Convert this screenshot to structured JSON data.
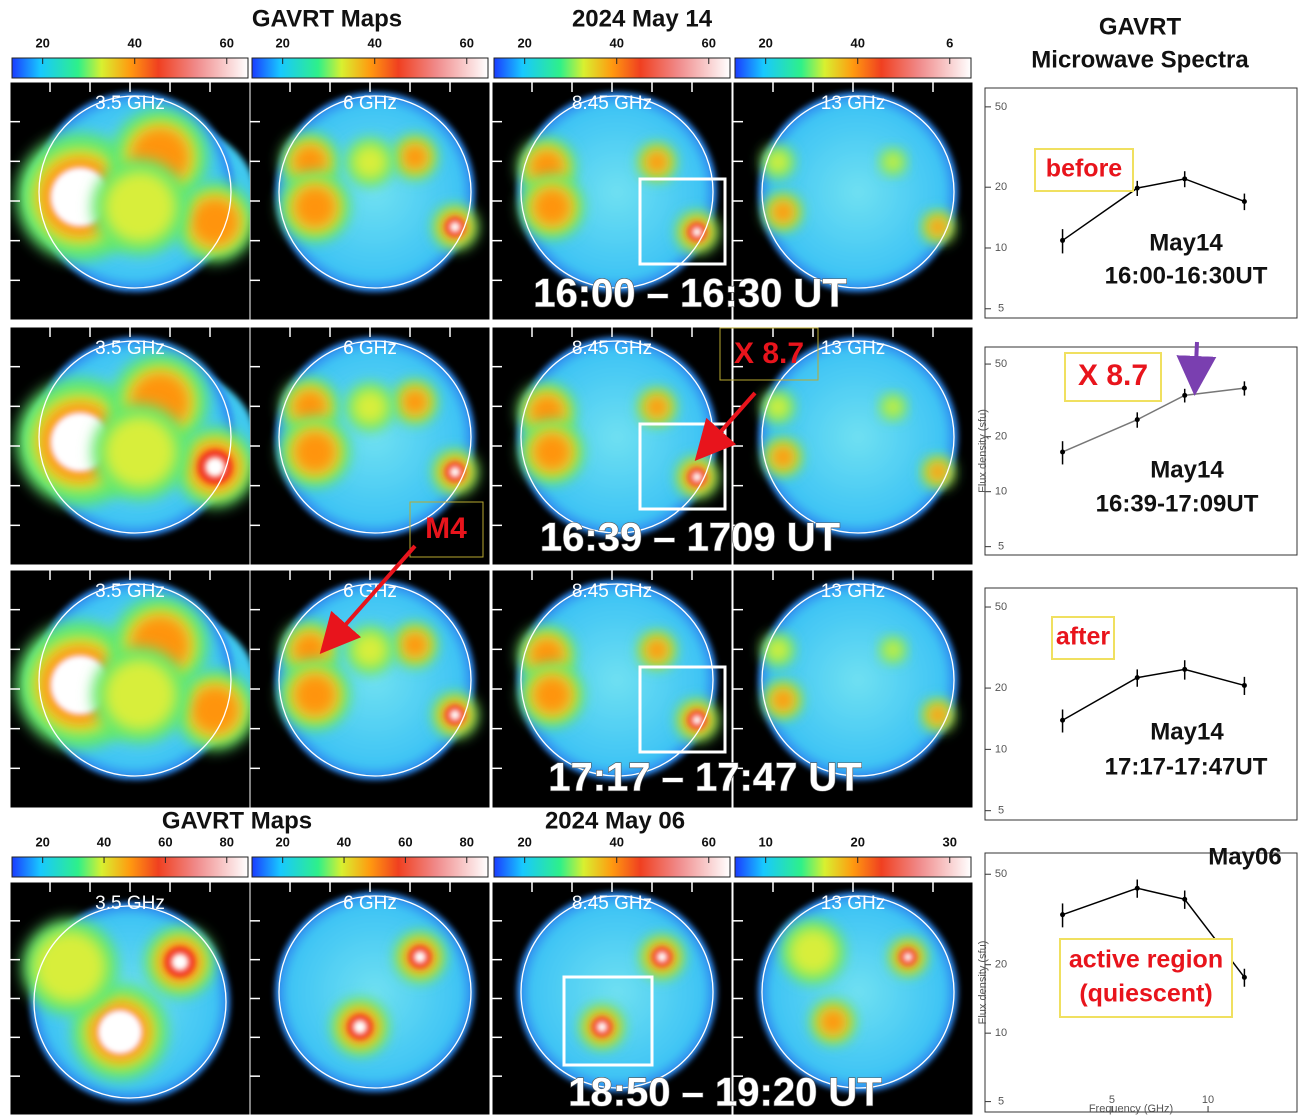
{
  "maps": {
    "sections": [
      {
        "title": "GAVRT Maps",
        "date": "2024 May 14",
        "colorbars": [
          [
            "20",
            "40",
            "60"
          ],
          [
            "20",
            "40",
            "60"
          ],
          [
            "20",
            "40",
            "60"
          ],
          [
            "20",
            "40",
            "6"
          ]
        ],
        "rows": [
          {
            "freqs": [
              "3.5 GHz",
              "6 GHz",
              "8.45 GHz",
              "13 GHz"
            ],
            "time": "16:00 – 16:30 UT"
          },
          {
            "freqs": [
              "3.5 GHz",
              "6 GHz",
              "8.45 GHz",
              "13 GHz"
            ],
            "time": "16:39 – 1709 UT"
          },
          {
            "freqs": [
              "3.5 GHz",
              "6 GHz",
              "8.45 GHz",
              "13 GHz"
            ],
            "time": "17:17 – 17:47 UT"
          }
        ]
      },
      {
        "title": "GAVRT Maps",
        "date": "2024 May 06",
        "colorbars": [
          [
            "20",
            "40",
            "60",
            "80"
          ],
          [
            "20",
            "40",
            "60",
            "80"
          ],
          [
            "20",
            "40",
            "60"
          ],
          [
            "10",
            "20",
            "30"
          ]
        ],
        "rows": [
          {
            "freqs": [
              "3.5 GHz",
              "6 GHz",
              "8.45 GHz",
              "13 GHz"
            ],
            "time": "18:50 – 19:20 UT"
          }
        ]
      }
    ],
    "annotations": [
      "X 8.7",
      "M4"
    ]
  },
  "spectra_title": [
    "GAVRT",
    "Microwave Spectra"
  ],
  "chart_data": [
    {
      "type": "line",
      "x": [
        3.5,
        6,
        8.45,
        13
      ],
      "log_x": true,
      "log_y": true,
      "xlim": [
        2,
        19
      ],
      "ylim": [
        4.5,
        62
      ],
      "yticks": [
        5,
        10,
        20,
        50
      ],
      "series": [
        {
          "color": "#000000",
          "values": [
            10.9,
            19.8,
            22,
            17
          ],
          "errors": [
            1.5,
            1.7,
            2,
            1.6
          ]
        }
      ],
      "label": [
        "before"
      ],
      "date": "May14",
      "time": "16:00-16:30UT"
    },
    {
      "type": "line",
      "x": [
        3.5,
        6,
        8.45,
        13
      ],
      "log_x": true,
      "log_y": true,
      "xlim": [
        2,
        19
      ],
      "ylim": [
        4.5,
        62
      ],
      "yticks": [
        5,
        10,
        20,
        50
      ],
      "series": [
        {
          "color": "#777777",
          "values": [
            16.5,
            24.8,
            33.7,
            36.9
          ],
          "errors": [
            2.4,
            2.4,
            2.9,
            3.3
          ]
        }
      ],
      "label": [
        "X 8.7"
      ],
      "date": "May14",
      "time": "16:39-17:09UT",
      "ylabel": "Flux density (sfu)"
    },
    {
      "type": "line",
      "x": [
        3.5,
        6,
        8.45,
        13
      ],
      "log_x": true,
      "log_y": true,
      "xlim": [
        2,
        19
      ],
      "ylim": [
        4.5,
        62
      ],
      "yticks": [
        5,
        10,
        20,
        50
      ],
      "series": [
        {
          "color": "#000000",
          "values": [
            13.9,
            22.5,
            24.7,
            20.6
          ],
          "errors": [
            1.8,
            2.2,
            2.7,
            2.1
          ]
        }
      ],
      "label": [
        "after"
      ],
      "date": "May14",
      "time": "17:17-17:47UT"
    },
    {
      "type": "line",
      "x": [
        3.5,
        6,
        8.45,
        13
      ],
      "log_x": true,
      "log_y": true,
      "xlim": [
        2,
        19
      ],
      "ylim": [
        4.5,
        62
      ],
      "yticks": [
        5,
        10,
        20,
        50
      ],
      "xticks": [
        5,
        10
      ],
      "series": [
        {
          "color": "#000000",
          "values": [
            33.2,
            43.4,
            38.8,
            17.6
          ],
          "errors": [
            4,
            4,
            3.6,
            1.6
          ]
        }
      ],
      "label": [
        "active region",
        "(quiescent)"
      ],
      "date": "May06",
      "ylabel": "Flux density (sfu)",
      "xlabel": "Frequency (GHz)"
    }
  ]
}
